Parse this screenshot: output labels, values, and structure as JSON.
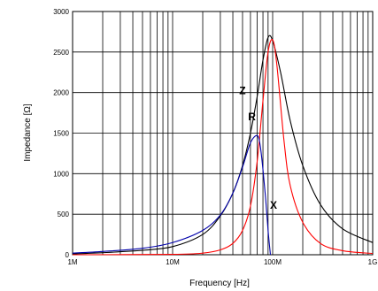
{
  "chart_data": {
    "type": "line",
    "title": "",
    "xlabel": "Frequency [Hz]",
    "ylabel": "Impedance [Ω]",
    "x_scale": "log",
    "xlim": [
      1000000,
      1000000000
    ],
    "ylim": [
      0,
      3000
    ],
    "x_ticks": [
      {
        "value": 1000000,
        "label": "1M"
      },
      {
        "value": 10000000,
        "label": "10M"
      },
      {
        "value": 100000000,
        "label": "100M"
      },
      {
        "value": 1000000000,
        "label": "1G"
      }
    ],
    "y_ticks": [
      {
        "value": 0,
        "label": "0"
      },
      {
        "value": 500,
        "label": "500"
      },
      {
        "value": 1000,
        "label": "1000"
      },
      {
        "value": 1500,
        "label": "1500"
      },
      {
        "value": 2000,
        "label": "2000"
      },
      {
        "value": 2500,
        "label": "2500"
      },
      {
        "value": 3000,
        "label": "3000"
      }
    ],
    "grid": true,
    "legend": "none",
    "series": [
      {
        "name": "Z",
        "color": "#000000",
        "label_point": {
          "x": 50000000,
          "y": 1980
        },
        "x": [
          1000000,
          2000000,
          5000000,
          10000000,
          20000000,
          30000000,
          40000000,
          50000000,
          60000000,
          70000000,
          80000000,
          90000000,
          100000000,
          120000000,
          150000000,
          200000000,
          300000000,
          500000000,
          1000000000
        ],
        "y": [
          10,
          25,
          55,
          100,
          250,
          480,
          760,
          1100,
          1500,
          1950,
          2400,
          2680,
          2640,
          2250,
          1650,
          1100,
          620,
          320,
          150
        ]
      },
      {
        "name": "R",
        "color": "#ff0000",
        "label_point": {
          "x": 62000000,
          "y": 1660
        },
        "x": [
          1000000,
          10000000,
          20000000,
          30000000,
          40000000,
          50000000,
          60000000,
          70000000,
          80000000,
          90000000,
          100000000,
          110000000,
          130000000,
          150000000,
          200000000,
          300000000,
          500000000,
          1000000000
        ],
        "y": [
          0,
          5,
          20,
          60,
          140,
          300,
          600,
          1150,
          1900,
          2500,
          2650,
          2350,
          1400,
          850,
          400,
          140,
          50,
          15
        ]
      },
      {
        "name": "X",
        "color": "#0000aa",
        "label_point": {
          "x": 102000000,
          "y": 570
        },
        "x": [
          1000000,
          2000000,
          5000000,
          10000000,
          20000000,
          30000000,
          40000000,
          50000000,
          60000000,
          70000000,
          75000000,
          80000000,
          85000000,
          90000000,
          95000000
        ],
        "y": [
          20,
          40,
          80,
          150,
          300,
          490,
          760,
          1080,
          1380,
          1470,
          1350,
          1050,
          700,
          300,
          0
        ]
      }
    ]
  }
}
